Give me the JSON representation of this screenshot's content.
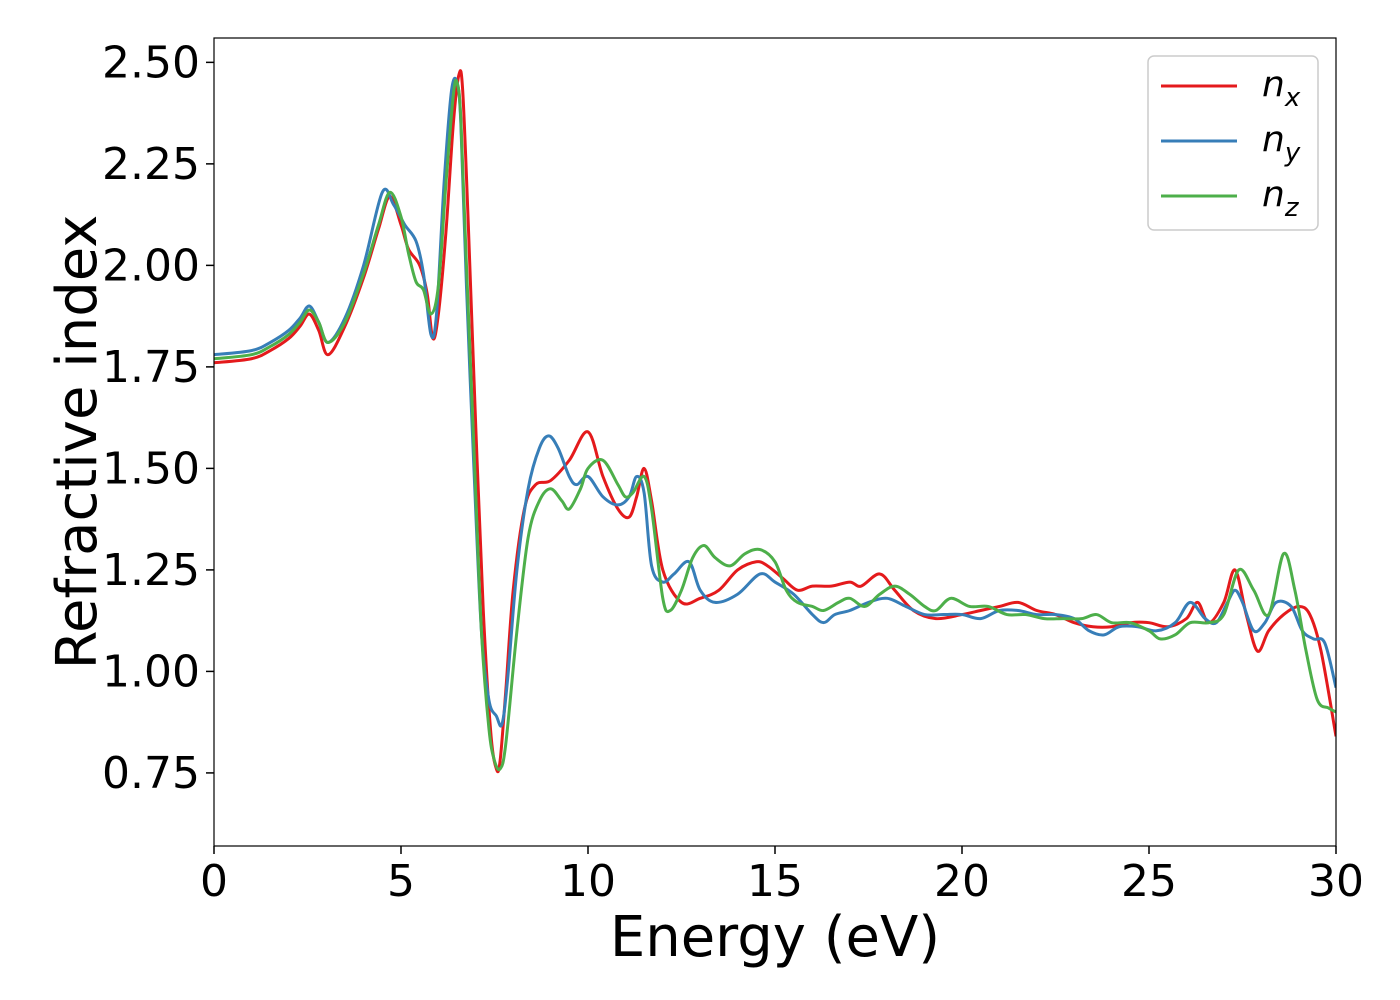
{
  "chart_data": {
    "type": "line",
    "title": "",
    "xlabel": "Energy (eV)",
    "ylabel": "Refractive index",
    "xlim": [
      0,
      30
    ],
    "ylim": [
      0.57,
      2.56
    ],
    "xticks": [
      0,
      5,
      10,
      15,
      20,
      25,
      30
    ],
    "xtick_labels": [
      "0",
      "5",
      "10",
      "15",
      "20",
      "25",
      "30"
    ],
    "yticks": [
      0.75,
      1.0,
      1.25,
      1.5,
      1.75,
      2.0,
      2.25,
      2.5
    ],
    "ytick_labels": [
      "0.75",
      "1.00",
      "1.25",
      "1.50",
      "1.75",
      "2.00",
      "2.25",
      "2.50"
    ],
    "grid": false,
    "legend_position": "top-right",
    "series": [
      {
        "name": "x",
        "label_base": "n",
        "label_sub": "x",
        "color": "#e41a1c",
        "x": [
          0,
          1,
          1.5,
          2,
          2.3,
          2.55,
          2.8,
          3.05,
          3.5,
          4.0,
          4.4,
          4.7,
          5.0,
          5.2,
          5.5,
          5.7,
          5.85,
          6.0,
          6.2,
          6.4,
          6.55,
          6.65,
          6.8,
          7.0,
          7.2,
          7.4,
          7.55,
          7.65,
          7.8,
          8.0,
          8.3,
          8.6,
          9.0,
          9.5,
          10.0,
          10.4,
          10.8,
          11.1,
          11.3,
          11.5,
          11.7,
          12.0,
          12.5,
          13.0,
          13.5,
          14.0,
          14.5,
          14.8,
          15.2,
          15.6,
          16.0,
          16.5,
          17.0,
          17.3,
          17.8,
          18.2,
          18.7,
          19.3,
          20.0,
          20.5,
          21.0,
          21.5,
          22.0,
          22.5,
          23.0,
          23.5,
          24.0,
          24.5,
          25.0,
          25.5,
          26.0,
          26.3,
          26.6,
          27.0,
          27.3,
          27.6,
          27.9,
          28.2,
          28.6,
          29.0,
          29.3,
          29.6,
          30.0
        ],
        "y": [
          1.76,
          1.77,
          1.79,
          1.82,
          1.85,
          1.88,
          1.84,
          1.78,
          1.85,
          1.97,
          2.09,
          2.17,
          2.1,
          2.04,
          2.0,
          1.93,
          1.82,
          1.88,
          2.08,
          2.35,
          2.47,
          2.43,
          2.1,
          1.6,
          1.15,
          0.85,
          0.76,
          0.78,
          0.95,
          1.2,
          1.4,
          1.46,
          1.47,
          1.52,
          1.59,
          1.48,
          1.4,
          1.38,
          1.43,
          1.5,
          1.42,
          1.25,
          1.17,
          1.18,
          1.2,
          1.25,
          1.27,
          1.26,
          1.23,
          1.2,
          1.21,
          1.21,
          1.22,
          1.21,
          1.24,
          1.2,
          1.15,
          1.13,
          1.14,
          1.15,
          1.16,
          1.17,
          1.15,
          1.14,
          1.12,
          1.11,
          1.11,
          1.12,
          1.12,
          1.11,
          1.13,
          1.17,
          1.12,
          1.17,
          1.25,
          1.14,
          1.05,
          1.1,
          1.14,
          1.16,
          1.14,
          1.05,
          0.84
        ]
      },
      {
        "name": "y",
        "label_base": "n",
        "label_sub": "y",
        "color": "#377eb8",
        "x": [
          0,
          1,
          1.5,
          2,
          2.3,
          2.55,
          2.8,
          3.05,
          3.5,
          4.0,
          4.5,
          4.8,
          5.1,
          5.4,
          5.6,
          5.8,
          5.95,
          6.15,
          6.35,
          6.5,
          6.6,
          6.75,
          6.95,
          7.15,
          7.35,
          7.55,
          7.7,
          7.85,
          8.1,
          8.4,
          8.7,
          8.95,
          9.2,
          9.5,
          9.7,
          10.0,
          10.4,
          10.8,
          11.1,
          11.3,
          11.5,
          11.7,
          12.0,
          12.3,
          12.7,
          13.0,
          13.4,
          14.0,
          14.6,
          15.0,
          15.5,
          16.0,
          16.3,
          16.6,
          17.0,
          17.5,
          18.0,
          18.5,
          19.0,
          19.5,
          20.0,
          20.5,
          21.0,
          21.5,
          22.0,
          22.5,
          23.0,
          23.4,
          23.8,
          24.2,
          24.7,
          25.2,
          25.7,
          26.1,
          26.5,
          26.8,
          27.1,
          27.3,
          27.5,
          27.8,
          28.1,
          28.4,
          28.8,
          29.1,
          29.4,
          29.7,
          30.0
        ],
        "y": [
          1.78,
          1.79,
          1.81,
          1.84,
          1.87,
          1.9,
          1.86,
          1.81,
          1.87,
          2.0,
          2.18,
          2.15,
          2.1,
          2.06,
          1.98,
          1.83,
          1.88,
          2.2,
          2.43,
          2.45,
          2.35,
          1.95,
          1.5,
          1.1,
          0.93,
          0.89,
          0.87,
          0.98,
          1.25,
          1.45,
          1.55,
          1.58,
          1.55,
          1.48,
          1.46,
          1.48,
          1.43,
          1.41,
          1.43,
          1.48,
          1.44,
          1.26,
          1.22,
          1.24,
          1.27,
          1.2,
          1.17,
          1.19,
          1.24,
          1.22,
          1.19,
          1.14,
          1.12,
          1.14,
          1.15,
          1.17,
          1.18,
          1.16,
          1.14,
          1.14,
          1.14,
          1.13,
          1.15,
          1.15,
          1.14,
          1.14,
          1.13,
          1.1,
          1.09,
          1.11,
          1.11,
          1.1,
          1.12,
          1.17,
          1.13,
          1.12,
          1.17,
          1.2,
          1.17,
          1.1,
          1.12,
          1.17,
          1.16,
          1.1,
          1.08,
          1.07,
          0.96
        ]
      },
      {
        "name": "z",
        "label_base": "n",
        "label_sub": "z",
        "color": "#4daf4a",
        "x": [
          0,
          1,
          1.5,
          2,
          2.3,
          2.55,
          2.8,
          3.05,
          3.5,
          4.0,
          4.4,
          4.7,
          5.0,
          5.2,
          5.4,
          5.6,
          5.8,
          6.0,
          6.2,
          6.4,
          6.5,
          6.6,
          6.75,
          6.95,
          7.15,
          7.35,
          7.5,
          7.65,
          7.8,
          8.1,
          8.4,
          8.7,
          9.0,
          9.3,
          9.5,
          9.8,
          10.0,
          10.4,
          10.8,
          11.0,
          11.2,
          11.5,
          11.7,
          12.0,
          12.2,
          12.5,
          12.8,
          13.1,
          13.4,
          13.8,
          14.2,
          14.6,
          15.0,
          15.3,
          15.6,
          16.0,
          16.3,
          16.7,
          17.0,
          17.4,
          17.8,
          18.2,
          18.6,
          19.0,
          19.3,
          19.7,
          20.2,
          20.7,
          21.2,
          21.7,
          22.2,
          22.7,
          23.2,
          23.6,
          24.0,
          24.5,
          25.0,
          25.3,
          25.7,
          26.1,
          26.6,
          27.0,
          27.4,
          27.8,
          28.2,
          28.6,
          28.9,
          29.2,
          29.5,
          29.8,
          30.0
        ],
        "y": [
          1.77,
          1.78,
          1.8,
          1.83,
          1.86,
          1.89,
          1.86,
          1.81,
          1.86,
          1.98,
          2.1,
          2.18,
          2.12,
          2.03,
          1.96,
          1.94,
          1.88,
          1.95,
          2.2,
          2.42,
          2.45,
          2.36,
          2.0,
          1.55,
          1.1,
          0.86,
          0.78,
          0.76,
          0.82,
          1.1,
          1.33,
          1.42,
          1.45,
          1.42,
          1.4,
          1.45,
          1.5,
          1.52,
          1.46,
          1.43,
          1.44,
          1.48,
          1.4,
          1.18,
          1.15,
          1.2,
          1.28,
          1.31,
          1.28,
          1.26,
          1.29,
          1.3,
          1.27,
          1.2,
          1.17,
          1.16,
          1.15,
          1.17,
          1.18,
          1.16,
          1.19,
          1.21,
          1.19,
          1.16,
          1.15,
          1.18,
          1.16,
          1.16,
          1.14,
          1.14,
          1.13,
          1.13,
          1.13,
          1.14,
          1.12,
          1.12,
          1.1,
          1.08,
          1.09,
          1.12,
          1.12,
          1.14,
          1.25,
          1.2,
          1.14,
          1.29,
          1.2,
          1.05,
          0.93,
          0.91,
          0.9
        ]
      }
    ]
  }
}
